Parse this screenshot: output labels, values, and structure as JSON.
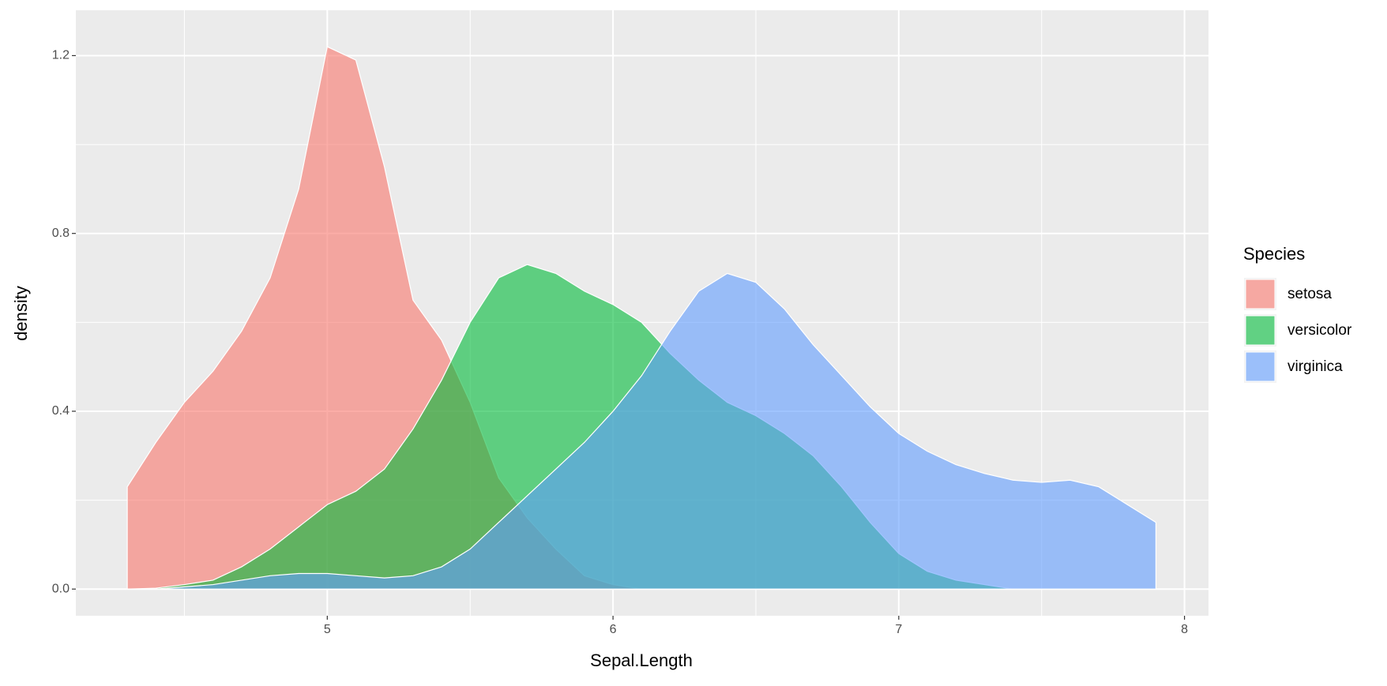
{
  "chart_data": {
    "type": "area",
    "xlabel": "Sepal.Length",
    "ylabel": "density",
    "legend_title": "Species",
    "legend": "right",
    "x": [
      4.3,
      4.4,
      4.5,
      4.6,
      4.7,
      4.8,
      4.9,
      5.0,
      5.1,
      5.2,
      5.3,
      5.4,
      5.5,
      5.6,
      5.7,
      5.8,
      5.9,
      6.0,
      6.1,
      6.2,
      6.3,
      6.4,
      6.5,
      6.6,
      6.7,
      6.8,
      6.9,
      7.0,
      7.1,
      7.2,
      7.3,
      7.4,
      7.5,
      7.6,
      7.7,
      7.8,
      7.9
    ],
    "series": [
      {
        "name": "setosa",
        "color": "#F8766D",
        "values": [
          0.23,
          0.33,
          0.42,
          0.49,
          0.58,
          0.7,
          0.9,
          1.22,
          1.19,
          0.95,
          0.65,
          0.56,
          0.42,
          0.25,
          0.16,
          0.09,
          0.03,
          0.01,
          0,
          0,
          0,
          0,
          0,
          0,
          0,
          0,
          0,
          0,
          0,
          0,
          0,
          0,
          0,
          0,
          0,
          0,
          0
        ]
      },
      {
        "name": "versicolor",
        "color": "#00BA38",
        "values": [
          0,
          0.002,
          0.01,
          0.02,
          0.05,
          0.09,
          0.14,
          0.19,
          0.22,
          0.27,
          0.36,
          0.47,
          0.6,
          0.7,
          0.73,
          0.71,
          0.67,
          0.64,
          0.6,
          0.53,
          0.47,
          0.42,
          0.39,
          0.35,
          0.3,
          0.23,
          0.15,
          0.08,
          0.04,
          0.02,
          0.01,
          0,
          0,
          0,
          0,
          0,
          0
        ]
      },
      {
        "name": "virginica",
        "color": "#619CFF",
        "values": [
          0,
          0,
          0.005,
          0.01,
          0.02,
          0.03,
          0.035,
          0.035,
          0.03,
          0.025,
          0.03,
          0.05,
          0.09,
          0.15,
          0.21,
          0.27,
          0.33,
          0.4,
          0.48,
          0.58,
          0.67,
          0.71,
          0.69,
          0.63,
          0.55,
          0.48,
          0.41,
          0.35,
          0.31,
          0.28,
          0.26,
          0.245,
          0.24,
          0.245,
          0.23,
          0.19,
          0.15
        ]
      }
    ],
    "opacity": 0.6,
    "xlim": [
      4.12,
      8.084
    ],
    "xticks": [
      5,
      6,
      7,
      8
    ],
    "xminorticks": [
      4.5,
      5.5,
      6.5,
      7.5
    ],
    "ylim": [
      -0.06,
      1.302
    ],
    "yticks": [
      {
        "value": 0,
        "label": "0.0"
      },
      0.4,
      0.8,
      1.2
    ],
    "yminorticks": [
      0.2,
      0.6,
      1.0
    ],
    "grid": true
  }
}
